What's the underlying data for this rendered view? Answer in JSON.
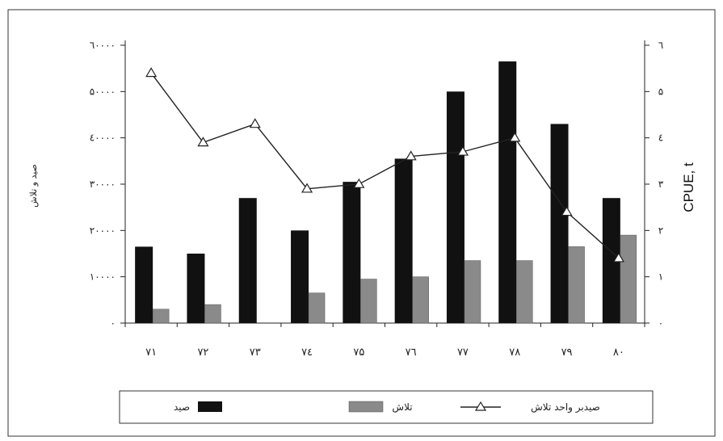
{
  "chart_data": {
    "type": "bar",
    "categories": [
      "۷۱",
      "۷۲",
      "۷۳",
      "۷٤",
      "۷۵",
      "۷٦",
      "۷۷",
      "۷۸",
      "۷۹",
      "۸۰"
    ],
    "series": [
      {
        "name": "صید",
        "kind": "bar",
        "axis": "left",
        "values": [
          16500,
          15000,
          27000,
          20000,
          30500,
          35500,
          50000,
          56500,
          43000,
          27000
        ]
      },
      {
        "name": "تلاش",
        "kind": "bar",
        "axis": "left",
        "values": [
          3000,
          4000,
          0,
          6500,
          9500,
          10000,
          13500,
          13500,
          16500,
          19000
        ]
      },
      {
        "name": "صیدبر واحد تلاش",
        "kind": "line",
        "axis": "right",
        "marker": "triangle",
        "values": [
          5.4,
          3.9,
          4.3,
          2.9,
          3.0,
          3.6,
          3.7,
          4.0,
          2.4,
          1.4
        ]
      }
    ],
    "y_left": {
      "label": "صید و تلاش",
      "ylim": [
        0,
        60000
      ],
      "ticks": [
        "۰",
        "۱۰۰۰۰",
        "۲۰۰۰۰",
        "۳۰۰۰۰",
        "٤۰۰۰۰",
        "۵۰۰۰۰",
        "٦۰۰۰۰"
      ]
    },
    "y_right": {
      "label": "CPUE, t",
      "ylim": [
        0,
        6
      ],
      "ticks": [
        "۰",
        "۱",
        "۲",
        "۳",
        "٤",
        "۵",
        "٦"
      ]
    },
    "legend": {
      "placement": "bottom"
    },
    "colors": {
      "catch": "#111111",
      "effort": "#8a8a8a",
      "line": "#222222"
    },
    "grid": false
  }
}
